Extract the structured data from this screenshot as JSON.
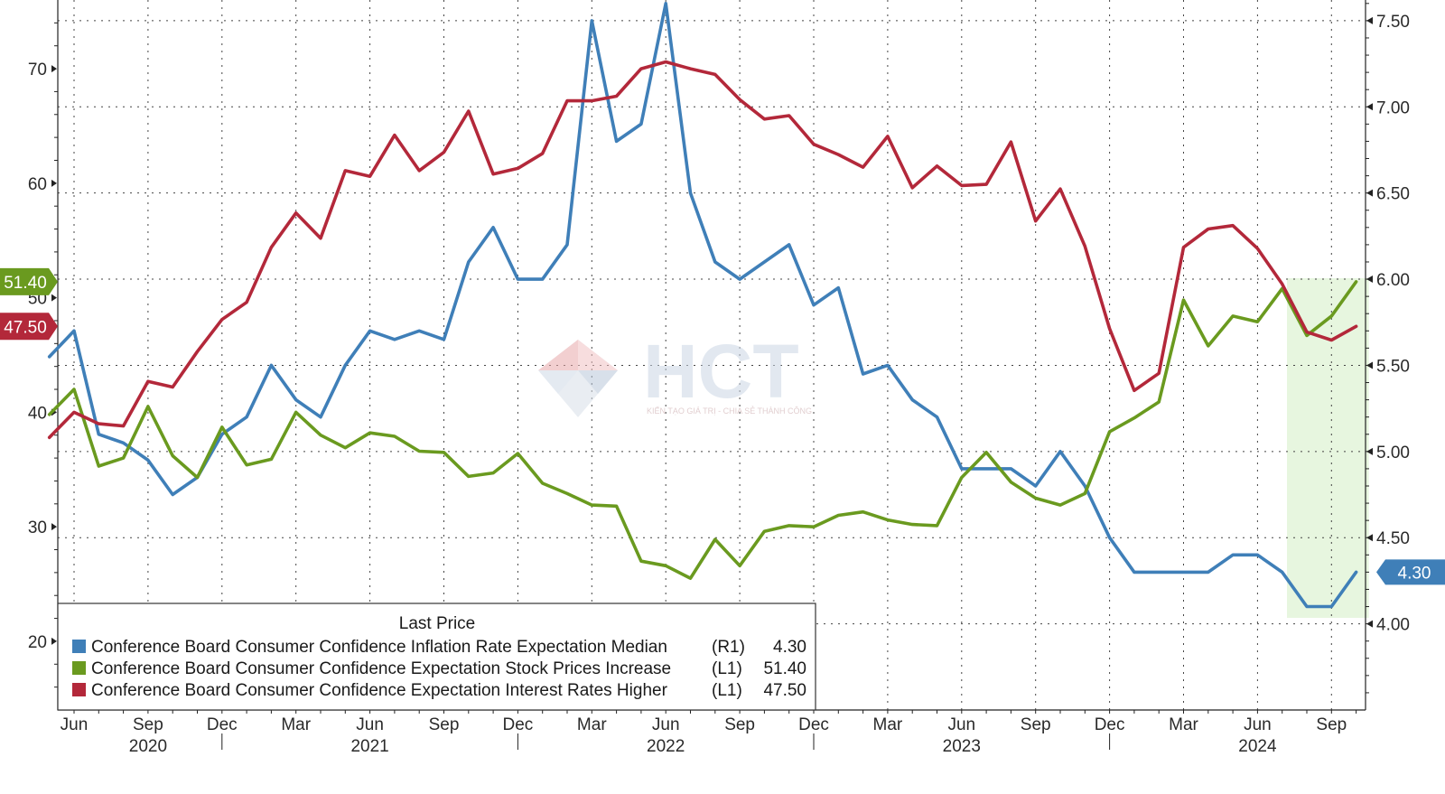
{
  "chart_data": {
    "type": "line",
    "x": [
      "2020-05",
      "2020-06",
      "2020-07",
      "2020-08",
      "2020-09",
      "2020-10",
      "2020-11",
      "2020-12",
      "2021-01",
      "2021-02",
      "2021-03",
      "2021-04",
      "2021-05",
      "2021-06",
      "2021-07",
      "2021-08",
      "2021-09",
      "2021-10",
      "2021-11",
      "2021-12",
      "2022-01",
      "2022-02",
      "2022-03",
      "2022-04",
      "2022-05",
      "2022-06",
      "2022-07",
      "2022-08",
      "2022-09",
      "2022-10",
      "2022-11",
      "2022-12",
      "2023-01",
      "2023-02",
      "2023-03",
      "2023-04",
      "2023-05",
      "2023-06",
      "2023-07",
      "2023-08",
      "2023-09",
      "2023-10",
      "2023-11",
      "2023-12",
      "2024-01",
      "2024-02",
      "2024-03",
      "2024-04",
      "2024-05",
      "2024-06",
      "2024-07",
      "2024-08",
      "2024-09",
      "2024-10"
    ],
    "x_tick_labels": [
      {
        "month": "2020-06",
        "label": "Jun"
      },
      {
        "month": "2020-09",
        "label": "Sep"
      },
      {
        "month": "2020-12",
        "label": "Dec"
      },
      {
        "month": "2021-03",
        "label": "Mar"
      },
      {
        "month": "2021-06",
        "label": "Jun"
      },
      {
        "month": "2021-09",
        "label": "Sep"
      },
      {
        "month": "2021-12",
        "label": "Dec"
      },
      {
        "month": "2022-03",
        "label": "Mar"
      },
      {
        "month": "2022-06",
        "label": "Jun"
      },
      {
        "month": "2022-09",
        "label": "Sep"
      },
      {
        "month": "2022-12",
        "label": "Dec"
      },
      {
        "month": "2023-03",
        "label": "Mar"
      },
      {
        "month": "2023-06",
        "label": "Jun"
      },
      {
        "month": "2023-09",
        "label": "Sep"
      },
      {
        "month": "2023-12",
        "label": "Dec"
      },
      {
        "month": "2024-03",
        "label": "Mar"
      },
      {
        "month": "2024-06",
        "label": "Jun"
      },
      {
        "month": "2024-09",
        "label": "Sep"
      }
    ],
    "year_labels": [
      {
        "month": "2020-09",
        "label": "2020"
      },
      {
        "month": "2021-06",
        "label": "2021"
      },
      {
        "month": "2022-06",
        "label": "2022"
      },
      {
        "month": "2023-06",
        "label": "2023"
      },
      {
        "month": "2024-06",
        "label": "2024"
      }
    ],
    "year_separators": [
      "2020-12",
      "2021-12",
      "2022-12",
      "2023-12"
    ],
    "left_axis": {
      "ticks": [
        20,
        30,
        40,
        50,
        60,
        70
      ],
      "ylim": [
        14,
        76
      ]
    },
    "right_axis": {
      "ticks": [
        "4.00",
        "4.50",
        "5.00",
        "5.50",
        "6.00",
        "6.50",
        "7.00",
        "7.50"
      ],
      "ylim": [
        3.5,
        7.62
      ]
    },
    "grid": true,
    "highlight_range": [
      "2024-08",
      "2024-10"
    ],
    "series": [
      {
        "name": "Conference Board Consumer Confidence Inflation Rate Expectation Median",
        "axis": "R1",
        "axis_label": "(R1)",
        "last_price": "4.30",
        "color": "#3f7fb8",
        "values": [
          5.55,
          5.7,
          5.1,
          5.05,
          4.95,
          4.75,
          4.85,
          5.1,
          5.2,
          5.5,
          5.3,
          5.2,
          5.5,
          5.7,
          5.65,
          5.7,
          5.65,
          6.1,
          6.3,
          6.0,
          6.0,
          6.2,
          7.5,
          6.8,
          6.9,
          7.6,
          6.5,
          6.1,
          6.0,
          6.1,
          6.2,
          5.85,
          5.95,
          5.45,
          5.5,
          5.3,
          5.2,
          4.9,
          4.9,
          4.9,
          4.8,
          5.0,
          4.8,
          4.5,
          4.3,
          4.3,
          4.3,
          4.3,
          4.4,
          4.4,
          4.3,
          4.1,
          4.1,
          4.3
        ]
      },
      {
        "name": "Conference Board Consumer Confidence Expectation Stock Prices Increase",
        "axis": "L1",
        "axis_label": "(L1)",
        "last_price": "51.40",
        "color": "#6a9a1f",
        "values": [
          39.8,
          42,
          35.3,
          36,
          40.5,
          36.2,
          34.3,
          38.7,
          35.4,
          35.9,
          40,
          38,
          36.9,
          38.2,
          37.9,
          36.6,
          36.5,
          34.4,
          34.7,
          36.4,
          33.8,
          32.9,
          31.9,
          31.8,
          27,
          26.6,
          25.5,
          28.9,
          26.6,
          29.6,
          30.1,
          30,
          31,
          31.3,
          30.6,
          30.2,
          30.1,
          34.3,
          36.5,
          33.9,
          32.5,
          31.9,
          32.9,
          38.3,
          39.5,
          40.9,
          49.8,
          45.8,
          48.4,
          47.9,
          50.8,
          46.7,
          48.4,
          51.4
        ]
      },
      {
        "name": "Conference Board Consumer Confidence Expectation Interest Rates Higher",
        "axis": "L1",
        "axis_label": "(L1)",
        "last_price": "47.50",
        "color": "#b3283a",
        "values": [
          37.8,
          40,
          39,
          38.8,
          42.7,
          42.2,
          45.3,
          48.1,
          49.6,
          54.4,
          57.4,
          55.2,
          61.1,
          60.6,
          64.2,
          61.1,
          62.7,
          66.3,
          60.8,
          61.3,
          62.6,
          67.2,
          67.2,
          67.6,
          70,
          70.6,
          70,
          69.5,
          67.3,
          65.6,
          65.9,
          63.4,
          62.5,
          61.4,
          64.1,
          59.6,
          61.5,
          59.8,
          59.9,
          63.6,
          56.7,
          59.5,
          54.5,
          47.3,
          41.9,
          43.4,
          54.4,
          56,
          56.3,
          54.3,
          51.2,
          47,
          46.3,
          47.5
        ]
      }
    ],
    "legend": {
      "title": "Last Price",
      "position": "bottom-left"
    }
  },
  "watermark": {
    "brand": "HCT",
    "tagline": "KIẾN TẠO GIÁ TRỊ - CHIA SẺ THÀNH CÔNG"
  }
}
